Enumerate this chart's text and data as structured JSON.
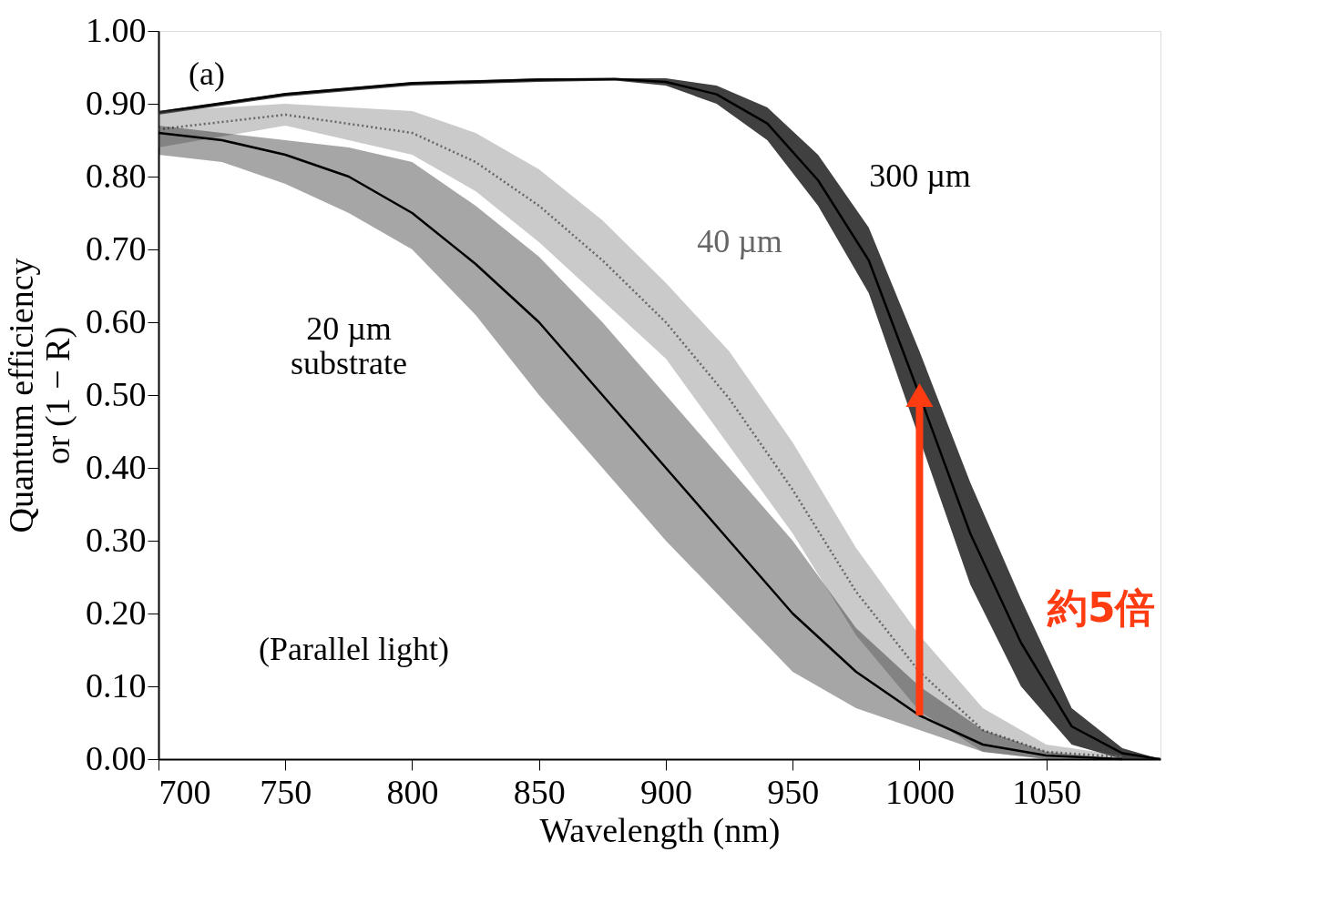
{
  "chart_data": {
    "type": "line",
    "xlabel": "Wavelength (nm)",
    "ylabel": "Quantum efficiency\nor (1 − R)",
    "xlim": [
      700,
      1095
    ],
    "xticks": [
      700,
      750,
      800,
      850,
      900,
      950,
      1000,
      1050
    ],
    "ylim": [
      0,
      1
    ],
    "yticks": [
      {
        "value": 0,
        "label": "0.00"
      },
      {
        "value": 0.1,
        "label": "0.10"
      },
      {
        "value": 0.2,
        "label": "0.20"
      },
      {
        "value": 0.3,
        "label": "0.30"
      },
      {
        "value": 0.4,
        "label": "0.40"
      },
      {
        "value": 0.5,
        "label": "0.50"
      },
      {
        "value": 0.6,
        "label": "0.60"
      },
      {
        "value": 0.7,
        "label": "0.70"
      },
      {
        "value": 0.8,
        "label": "0.80"
      },
      {
        "value": 0.9,
        "label": "0.90"
      },
      {
        "value": 1,
        "label": "1.00"
      }
    ],
    "grid": false,
    "legend": false,
    "series": [
      {
        "name": "300 µm",
        "color": "#000000",
        "line_style": "solid",
        "x": [
          700,
          750,
          800,
          850,
          880,
          900,
          920,
          940,
          960,
          980,
          1000,
          1020,
          1040,
          1060,
          1080,
          1095
        ],
        "values": [
          0.888,
          0.913,
          0.928,
          0.933,
          0.934,
          0.93,
          0.913,
          0.873,
          0.795,
          0.685,
          0.5,
          0.31,
          0.16,
          0.045,
          0.008,
          0
        ],
        "lower": [
          0.885,
          0.91,
          0.925,
          0.93,
          0.932,
          0.925,
          0.9,
          0.85,
          0.76,
          0.64,
          0.44,
          0.24,
          0.1,
          0.02,
          0,
          0
        ],
        "upper": [
          0.89,
          0.915,
          0.93,
          0.935,
          0.935,
          0.935,
          0.925,
          0.895,
          0.83,
          0.73,
          0.56,
          0.38,
          0.22,
          0.07,
          0.015,
          0
        ]
      },
      {
        "name": "40 µm",
        "color": "#666666",
        "line_style": "dotted",
        "x": [
          700,
          750,
          800,
          825,
          850,
          875,
          900,
          925,
          950,
          975,
          1000,
          1025,
          1050,
          1080
        ],
        "values": [
          0.865,
          0.885,
          0.86,
          0.82,
          0.76,
          0.685,
          0.6,
          0.495,
          0.37,
          0.23,
          0.12,
          0.04,
          0.01,
          0.003
        ],
        "lower": [
          0.84,
          0.87,
          0.83,
          0.78,
          0.71,
          0.63,
          0.55,
          0.43,
          0.31,
          0.17,
          0.066,
          0.01,
          0,
          0
        ],
        "upper": [
          0.89,
          0.9,
          0.89,
          0.86,
          0.81,
          0.74,
          0.654,
          0.56,
          0.435,
          0.29,
          0.17,
          0.07,
          0.02,
          0.005
        ]
      },
      {
        "name": "20 µm\nsubstrate",
        "color": "#000000",
        "line_style": "solid",
        "x": [
          700,
          725,
          750,
          775,
          800,
          825,
          850,
          875,
          900,
          925,
          950,
          975,
          1000,
          1025,
          1050,
          1080
        ],
        "values": [
          0.86,
          0.85,
          0.83,
          0.8,
          0.75,
          0.68,
          0.6,
          0.5,
          0.4,
          0.3,
          0.2,
          0.12,
          0.06,
          0.02,
          0.005,
          0
        ],
        "lower": [
          0.83,
          0.82,
          0.79,
          0.75,
          0.7,
          0.61,
          0.5,
          0.4,
          0.3,
          0.21,
          0.12,
          0.07,
          0.04,
          0.01,
          0,
          0
        ],
        "upper": [
          0.87,
          0.86,
          0.85,
          0.84,
          0.82,
          0.76,
          0.69,
          0.6,
          0.5,
          0.4,
          0.3,
          0.18,
          0.1,
          0.04,
          0.01,
          0
        ]
      }
    ],
    "annotations": [
      "(a)",
      "(Parallel light)",
      "約5倍"
    ]
  }
}
